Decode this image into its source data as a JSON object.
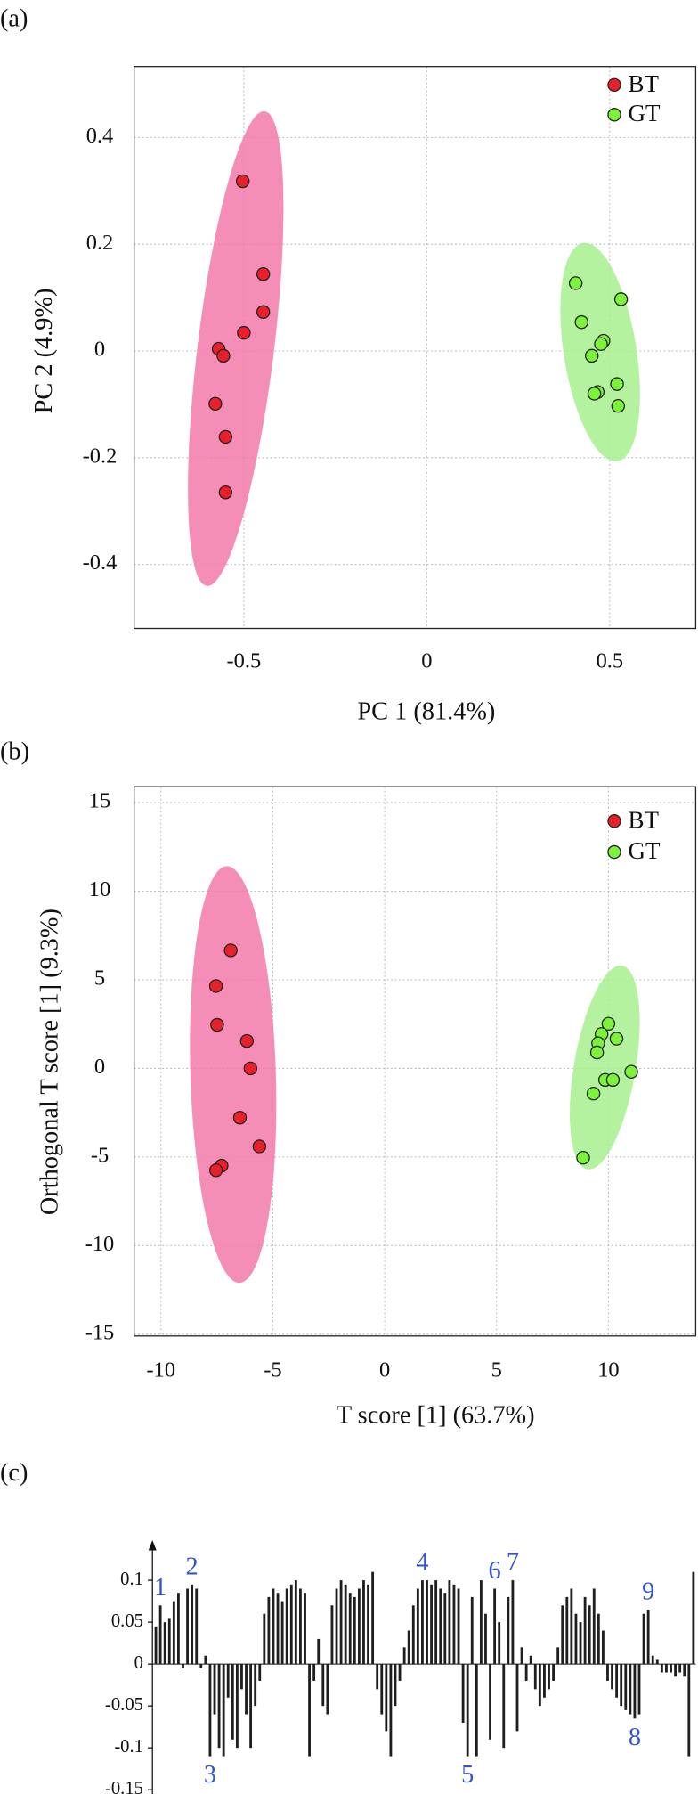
{
  "chart_data": [
    {
      "type": "scatter",
      "panel_label": "(a)",
      "x_label": "PC 1 (81.4%)",
      "y_label": "PC 2 (4.9%)",
      "xlim": [
        -0.8,
        0.735
      ],
      "ylim": [
        -0.52,
        0.533
      ],
      "xticks": [
        -0.5,
        0,
        0.5
      ],
      "yticks": [
        -0.4,
        -0.2,
        0,
        0.2,
        0.4
      ],
      "grid": true,
      "legend": "upper right",
      "series": [
        {
          "name": "BT",
          "color": "#e8202a",
          "ellipse_color": "#f27aa9",
          "x": [
            -0.503,
            -0.447,
            -0.447,
            -0.5,
            -0.569,
            -0.556,
            -0.578,
            -0.55,
            -0.55
          ],
          "y": [
            0.318,
            0.144,
            0.073,
            0.034,
            0.004,
            -0.009,
            -0.099,
            -0.161,
            -0.265
          ]
        },
        {
          "name": "GT",
          "color": "#7cf23a",
          "ellipse_color": "#a8f08e",
          "x": [
            0.407,
            0.531,
            0.423,
            0.483,
            0.476,
            0.451,
            0.52,
            0.467,
            0.458,
            0.523
          ],
          "y": [
            0.127,
            0.097,
            0.054,
            0.019,
            0.013,
            -0.009,
            -0.062,
            -0.077,
            -0.08,
            -0.103
          ]
        }
      ]
    },
    {
      "type": "scatter",
      "panel_label": "(b)",
      "x_label": "T score [1] (63.7%)",
      "y_label": "Orthogonal T score [1] (9.3%)",
      "xlim": [
        -11.2,
        13.9
      ],
      "ylim": [
        -15.1,
        15.9
      ],
      "xticks": [
        -10,
        -5,
        0,
        5,
        10
      ],
      "yticks": [
        -15,
        -10,
        -5,
        0,
        5,
        10,
        15
      ],
      "grid": true,
      "legend": "upper right",
      "series": [
        {
          "name": "BT",
          "color": "#e8202a",
          "ellipse_color": "#f27aa9",
          "x": [
            -6.88,
            -7.54,
            -7.49,
            -6.16,
            -6.0,
            -6.47,
            -5.6,
            -7.29,
            -7.54
          ],
          "y": [
            6.66,
            4.65,
            2.46,
            1.55,
            0.0,
            -2.78,
            -4.4,
            -5.49,
            -5.75
          ]
        },
        {
          "name": "GT",
          "color": "#7cf23a",
          "ellipse_color": "#a8f08e",
          "x": [
            10.0,
            9.69,
            10.36,
            9.54,
            9.49,
            11.02,
            9.85,
            10.2,
            9.33,
            8.87
          ],
          "y": [
            2.52,
            1.94,
            1.68,
            1.42,
            0.9,
            -0.19,
            -0.65,
            -0.65,
            -1.42,
            -5.04
          ]
        }
      ]
    },
    {
      "type": "bar",
      "panel_label": "(c)",
      "color": "#1e1e1e",
      "ylim": [
        -0.16,
        0.148
      ],
      "yticks": [
        -0.15,
        -0.1,
        -0.05,
        0,
        0.05,
        0.1
      ],
      "values": [
        0.045,
        0.07,
        0.05,
        0.055,
        0.075,
        0.085,
        -0.005,
        0.09,
        0.095,
        0.09,
        -0.005,
        0.01,
        -0.11,
        -0.06,
        -0.1,
        -0.11,
        -0.04,
        -0.09,
        -0.1,
        -0.03,
        -0.06,
        -0.1,
        -0.05,
        -0.02,
        0.06,
        0.08,
        0.09,
        0.085,
        0.075,
        0.09,
        0.095,
        0.1,
        0.09,
        0.085,
        -0.11,
        -0.02,
        0.03,
        -0.05,
        -0.06,
        0.07,
        0.09,
        0.1,
        0.095,
        0.085,
        0.08,
        0.09,
        0.1,
        0.095,
        0.11,
        -0.03,
        -0.06,
        -0.08,
        -0.11,
        -0.05,
        -0.02,
        0.02,
        0.04,
        0.07,
        0.09,
        0.1,
        0.1,
        0.095,
        0.1,
        0.09,
        0.085,
        0.1,
        0.095,
        0.09,
        -0.07,
        -0.11,
        0.08,
        -0.11,
        0.1,
        0.06,
        -0.09,
        0.09,
        0.05,
        -0.1,
        0.08,
        0.1,
        -0.08,
        0.02,
        -0.02,
        0.01,
        -0.03,
        -0.05,
        -0.04,
        -0.03,
        -0.02,
        0.02,
        0.07,
        0.08,
        0.09,
        0.06,
        0.05,
        0.08,
        0.07,
        0.09,
        0.06,
        0.04,
        -0.02,
        -0.03,
        -0.04,
        -0.05,
        -0.055,
        -0.06,
        -0.065,
        -0.06,
        0.06,
        0.065,
        0.01,
        0.005,
        -0.01,
        -0.01,
        -0.01,
        -0.015,
        -0.01,
        -0.015,
        -0.11,
        0.11
      ],
      "annotations": [
        {
          "text": "1",
          "bar": 1
        },
        {
          "text": "2",
          "bar": 8
        },
        {
          "text": "3",
          "bar": 12
        },
        {
          "text": "4",
          "bar": 59
        },
        {
          "text": "5",
          "bar": 69
        },
        {
          "text": "6",
          "bar": 75
        },
        {
          "text": "7",
          "bar": 79
        },
        {
          "text": "8",
          "bar": 106
        },
        {
          "text": "9",
          "bar": 109
        }
      ]
    }
  ]
}
